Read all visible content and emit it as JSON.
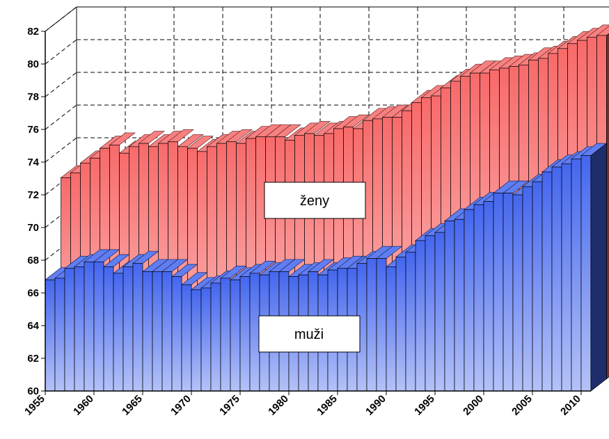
{
  "chart_data": {
    "type": "bar3d",
    "x": [
      1955,
      1956,
      1957,
      1958,
      1959,
      1960,
      1961,
      1962,
      1963,
      1964,
      1965,
      1966,
      1967,
      1968,
      1969,
      1970,
      1971,
      1972,
      1973,
      1974,
      1975,
      1976,
      1977,
      1978,
      1979,
      1980,
      1981,
      1982,
      1983,
      1984,
      1985,
      1986,
      1987,
      1988,
      1989,
      1990,
      1991,
      1992,
      1993,
      1994,
      1995,
      1996,
      1997,
      1998,
      1999,
      2000,
      2001,
      2002,
      2003,
      2004,
      2005,
      2006,
      2007,
      2008,
      2009,
      2010
    ],
    "series": [
      {
        "name": "ženy",
        "color": "#f86a6a",
        "values": [
          72.3,
          72.6,
          73.2,
          73.5,
          74.1,
          74.3,
          73.8,
          74.2,
          74.4,
          74.2,
          74.4,
          74.5,
          74.2,
          74.1,
          73.9,
          74.2,
          74.4,
          74.5,
          74.4,
          74.7,
          74.8,
          74.8,
          74.8,
          74.6,
          74.9,
          75.0,
          74.9,
          75.0,
          75.3,
          75.4,
          75.3,
          75.8,
          75.9,
          76.0,
          76.0,
          76.4,
          76.9,
          77.2,
          77.3,
          77.8,
          78.2,
          78.5,
          78.7,
          78.7,
          78.9,
          79.0,
          79.1,
          79.2,
          79.5,
          79.6,
          79.9,
          80.2,
          80.5,
          80.7,
          80.9,
          81.0
        ]
      },
      {
        "name": "muži",
        "color": "#4466ee",
        "values": [
          66.8,
          66.9,
          67.5,
          67.6,
          67.9,
          67.9,
          67.6,
          67.2,
          67.6,
          67.8,
          67.3,
          67.3,
          67.3,
          67.0,
          66.5,
          66.2,
          66.3,
          66.6,
          66.9,
          66.8,
          67.0,
          67.2,
          67.1,
          67.3,
          67.3,
          67.0,
          67.1,
          67.3,
          67.1,
          67.4,
          67.5,
          67.5,
          67.8,
          68.1,
          68.1,
          67.6,
          68.2,
          68.5,
          69.2,
          69.5,
          69.7,
          70.4,
          70.5,
          71.1,
          71.4,
          71.6,
          72.1,
          72.1,
          72.0,
          72.5,
          72.8,
          73.4,
          73.7,
          73.9,
          74.2,
          74.4
        ]
      }
    ],
    "xlim": [
      1955,
      2011
    ],
    "xticks": [
      1955,
      1960,
      1965,
      1970,
      1975,
      1980,
      1985,
      1990,
      1995,
      2000,
      2005,
      2010
    ],
    "ylim": [
      60,
      82
    ],
    "yticks": [
      60,
      62,
      64,
      66,
      68,
      70,
      72,
      74,
      76,
      78,
      80,
      82
    ],
    "grid": true
  }
}
